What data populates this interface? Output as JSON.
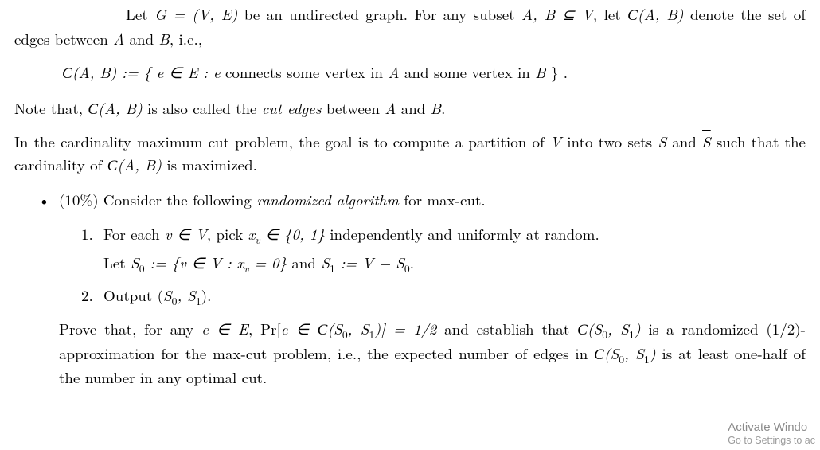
{
  "para1_part1": "Let ",
  "para1_math1": "G = (V, E)",
  "para1_part2": " be an undirected graph. For any subset ",
  "para1_math2": "A, B ⊆ V",
  "para1_part3": ", let ",
  "para1_math3_cal": "C",
  "para1_math3_rest": "(A, B)",
  "para1_part4": " denote the set of edges between ",
  "para1_math4": "A",
  "para1_part5": " and ",
  "para1_math5": "B",
  "para1_part6": ", i.e.,",
  "display1_cal": "C",
  "display1_lhs_rest": "(A, B)  :=  { e ∈ E  :  e",
  "display1_text": " connects some vertex in ",
  "display1_A": "A",
  "display1_text2": " and some vertex in ",
  "display1_B": "B",
  "display1_end": " } .",
  "para2_part1": "Note that, ",
  "para2_cal": "C",
  "para2_math1_rest": "(A, B)",
  "para2_part2": " is also called the ",
  "para2_ital": "cut edges",
  "para2_part3": " between ",
  "para2_A": "A",
  "para2_part4": " and ",
  "para2_B": "B",
  "para2_part5": ".",
  "para3_part1": "In the cardinality maximum cut problem, the goal is to compute a partition of ",
  "para3_V": "V",
  "para3_part2": " into two sets ",
  "para3_S": "S",
  "para3_part3": " and ",
  "para3_Sbar": "S",
  "para3_part4": " such that the cardinality of ",
  "para3_cal": "C",
  "para3_math_rest": "(A, B)",
  "para3_part5": " is maximized.",
  "bullet1_part1": "(10%) Consider the following ",
  "bullet1_ital": "randomized algorithm",
  "bullet1_part2": " for max-cut.",
  "step1_num": "1.",
  "step1_part1": "For each ",
  "step1_math1": "v ∈ V",
  "step1_part2": ", pick ",
  "step1_math2_x": "x",
  "step1_math2_v": "v",
  "step1_math2_rest": " ∈ {0, 1}",
  "step1_part3": " independently and uniformly at random.",
  "step1_line2_part1": "Let ",
  "step1_line2_math1_S0": "S",
  "step1_line2_math1_0": "0",
  "step1_line2_math1_rest": " := {v ∈ V : x",
  "step1_line2_math1_v": "v",
  "step1_line2_math1_rest2": " = 0}",
  "step1_line2_part2": " and ",
  "step1_line2_math2_S1": "S",
  "step1_line2_math2_1": "1",
  "step1_line2_math2_rest": " := V − S",
  "step1_line2_math2_0b": "0",
  "step1_line2_end": ".",
  "step2_num": "2.",
  "step2_part1": "Output (",
  "step2_S0": "S",
  "step2_0": "0",
  "step2_comma": ", ",
  "step2_S1": "S",
  "step2_1": "1",
  "step2_end": ").",
  "proof_part1": "Prove that, for any ",
  "proof_math1": "e ∈ E",
  "proof_part2": ", Pr[",
  "proof_math2_e": "e ∈ ",
  "proof_cal1": "C",
  "proof_math2_rest": "(S",
  "proof_math2_0": "0",
  "proof_math2_mid": ", S",
  "proof_math2_1": "1",
  "proof_math2_end": ")] = 1/2",
  "proof_part3": " and establish that ",
  "proof_cal2": "C",
  "proof_math3_rest": "(S",
  "proof_math3_0": "0",
  "proof_math3_mid": ", S",
  "proof_math3_1": "1",
  "proof_math3_end": ")",
  "proof_part4": " is a randomized (1/2)-approximation for the max-cut problem, i.e., the expected number of edges in ",
  "proof_cal3": "C",
  "proof_math4_rest": "(S",
  "proof_math4_0": "0",
  "proof_math4_mid": ", S",
  "proof_math4_1": "1",
  "proof_math4_end": ")",
  "proof_part5": " is at least one-half of the number in any optimal cut.",
  "watermark_line1": "Activate Windo",
  "watermark_line2": "Go to Settings to ac"
}
